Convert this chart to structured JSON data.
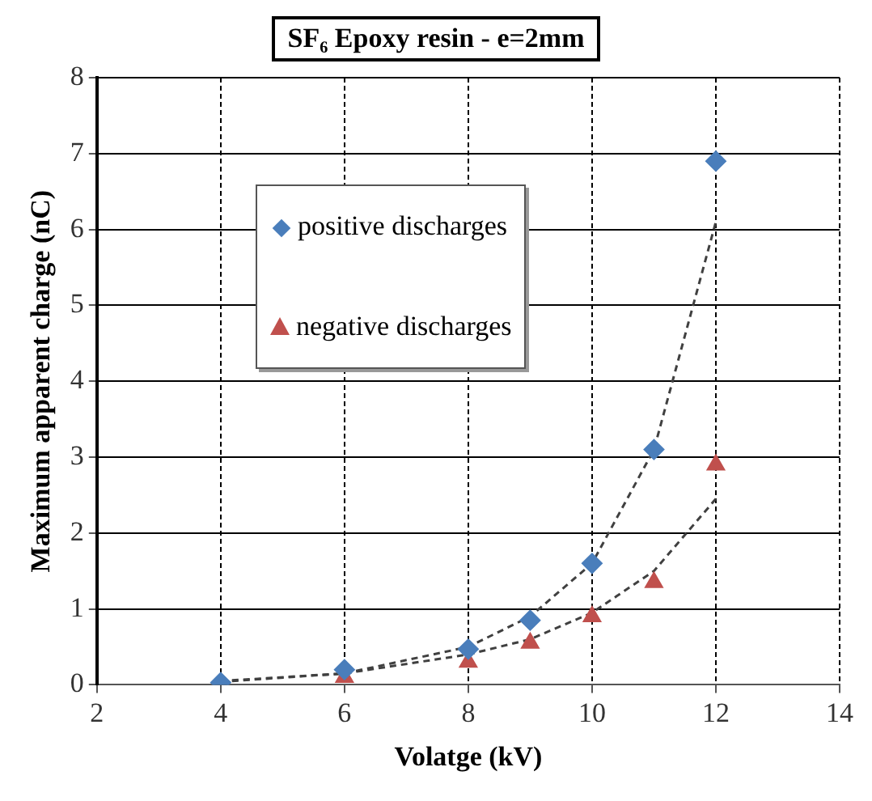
{
  "chart_data": {
    "type": "scatter",
    "title": "SF₆ Epoxy resin - e=2mm",
    "xlabel": "Volatge (kV)",
    "ylabel": "Maximum apparent charge (nC)",
    "xlim": [
      2,
      14
    ],
    "xticks": [
      2,
      4,
      6,
      8,
      10,
      12,
      14
    ],
    "ylim": [
      0,
      8
    ],
    "yticks": [
      0,
      1,
      2,
      3,
      4,
      5,
      6,
      7,
      8
    ],
    "grid": true,
    "legend": "top left",
    "series": [
      {
        "name": "positive discharges",
        "type": "scatter",
        "marker": "diamond",
        "color": "#4a7ebb",
        "x": [
          4,
          6,
          8,
          9,
          10,
          11,
          12
        ],
        "values": [
          0.03,
          0.2,
          0.47,
          0.85,
          1.6,
          3.1,
          6.9
        ]
      },
      {
        "name": "negative discharges",
        "type": "scatter",
        "marker": "triangle",
        "color": "#c0504d",
        "x": [
          6,
          8,
          9,
          10,
          11,
          12
        ],
        "values": [
          0.1,
          0.3,
          0.55,
          0.9,
          1.35,
          2.9
        ]
      },
      {
        "type": "line",
        "marker": "none",
        "line_style": "dashed",
        "color": "#404040",
        "x": [
          4,
          6,
          8,
          9,
          10,
          11,
          12
        ],
        "values": [
          0.04,
          0.15,
          0.5,
          0.9,
          1.6,
          3.1,
          6.1
        ]
      },
      {
        "type": "line",
        "marker": "none",
        "line_style": "dashed",
        "color": "#404040",
        "x": [
          4,
          6,
          8,
          9,
          10,
          11,
          12
        ],
        "values": [
          0.05,
          0.15,
          0.4,
          0.6,
          0.95,
          1.5,
          2.45
        ]
      }
    ]
  }
}
